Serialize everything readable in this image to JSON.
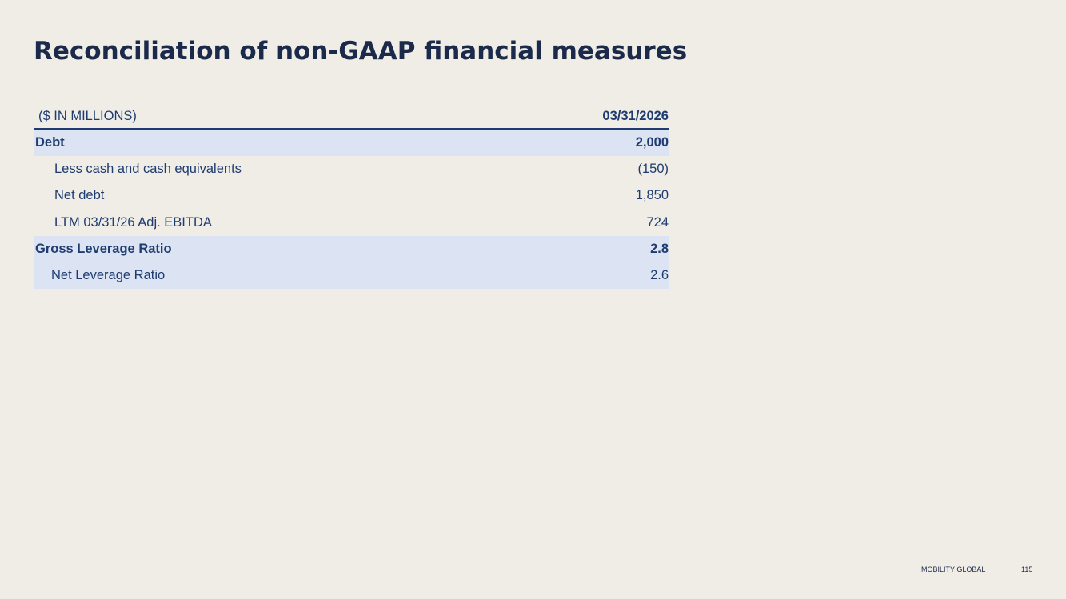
{
  "title": "Reconciliation of non-GAAP financial measures",
  "table": {
    "header": {
      "label": "($ IN MILLIONS)",
      "value": "03/31/2026"
    },
    "rows": [
      {
        "label": "Debt",
        "value": "2,000"
      },
      {
        "label": "Less cash and cash equivalents",
        "value": "(150)"
      },
      {
        "label": "Net debt",
        "value": "1,850"
      },
      {
        "label": "LTM 03/31/26 Adj. EBITDA",
        "value": "724"
      },
      {
        "label": "Gross Leverage Ratio",
        "value": "2.8"
      },
      {
        "label": "Net Leverage Ratio",
        "value": "2.6"
      }
    ]
  },
  "footer": {
    "brand": "MOBILITY GLOBAL",
    "page_number": "115"
  },
  "colors": {
    "background": "#efede6",
    "title": "#1b2a4a",
    "table_text": "#1f3c70",
    "row_highlight": "#dce3f2"
  }
}
